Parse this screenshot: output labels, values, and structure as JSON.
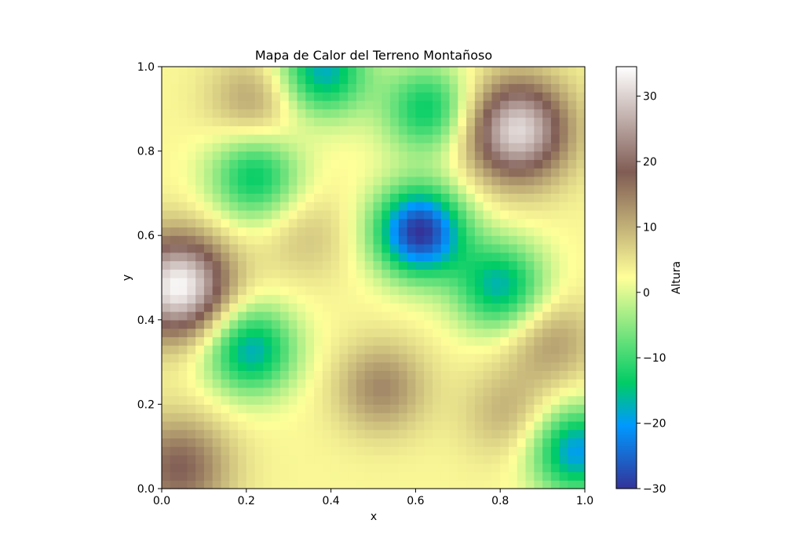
{
  "chart_data": {
    "type": "heatmap",
    "title": "Mapa de Calor del Terreno Montañoso",
    "xlabel": "x",
    "ylabel": "y",
    "xlim": [
      0,
      1
    ],
    "ylim": [
      0,
      1
    ],
    "x_ticks": [
      "0.0",
      "0.2",
      "0.4",
      "0.6",
      "0.8",
      "1.0"
    ],
    "y_ticks": [
      "0.0",
      "0.2",
      "0.4",
      "0.6",
      "0.8",
      "1.0"
    ],
    "grid_resolution": 50,
    "colormap": "terrain",
    "colorbar": {
      "label": "Altura",
      "range": [
        -30,
        34.5
      ],
      "ticks": [
        "−30",
        "−20",
        "−10",
        "0",
        "10",
        "20",
        "30"
      ]
    },
    "features": [
      {
        "x": 0.04,
        "y": 0.48,
        "value": 34,
        "kind": "peak"
      },
      {
        "x": 0.84,
        "y": 0.85,
        "value": 31,
        "kind": "peak"
      },
      {
        "x": 0.04,
        "y": 0.05,
        "value": 18,
        "kind": "peak"
      },
      {
        "x": 0.22,
        "y": 0.92,
        "value": 12,
        "kind": "hill"
      },
      {
        "x": 0.52,
        "y": 0.24,
        "value": 14,
        "kind": "hill"
      },
      {
        "x": 0.92,
        "y": 0.35,
        "value": 12,
        "kind": "hill"
      },
      {
        "x": 0.82,
        "y": 0.18,
        "value": 10,
        "kind": "hill"
      },
      {
        "x": 0.34,
        "y": 0.6,
        "value": 8,
        "kind": "hill"
      },
      {
        "x": 0.61,
        "y": 0.61,
        "value": -30,
        "kind": "valley"
      },
      {
        "x": 0.21,
        "y": 0.33,
        "value": -18,
        "kind": "valley"
      },
      {
        "x": 0.98,
        "y": 0.09,
        "value": -20,
        "kind": "valley"
      },
      {
        "x": 0.38,
        "y": 0.99,
        "value": -18,
        "kind": "valley"
      },
      {
        "x": 0.8,
        "y": 0.48,
        "value": -17,
        "kind": "valley"
      },
      {
        "x": 0.63,
        "y": 0.9,
        "value": -14,
        "kind": "valley"
      },
      {
        "x": 0.22,
        "y": 0.74,
        "value": -14,
        "kind": "valley"
      }
    ]
  }
}
